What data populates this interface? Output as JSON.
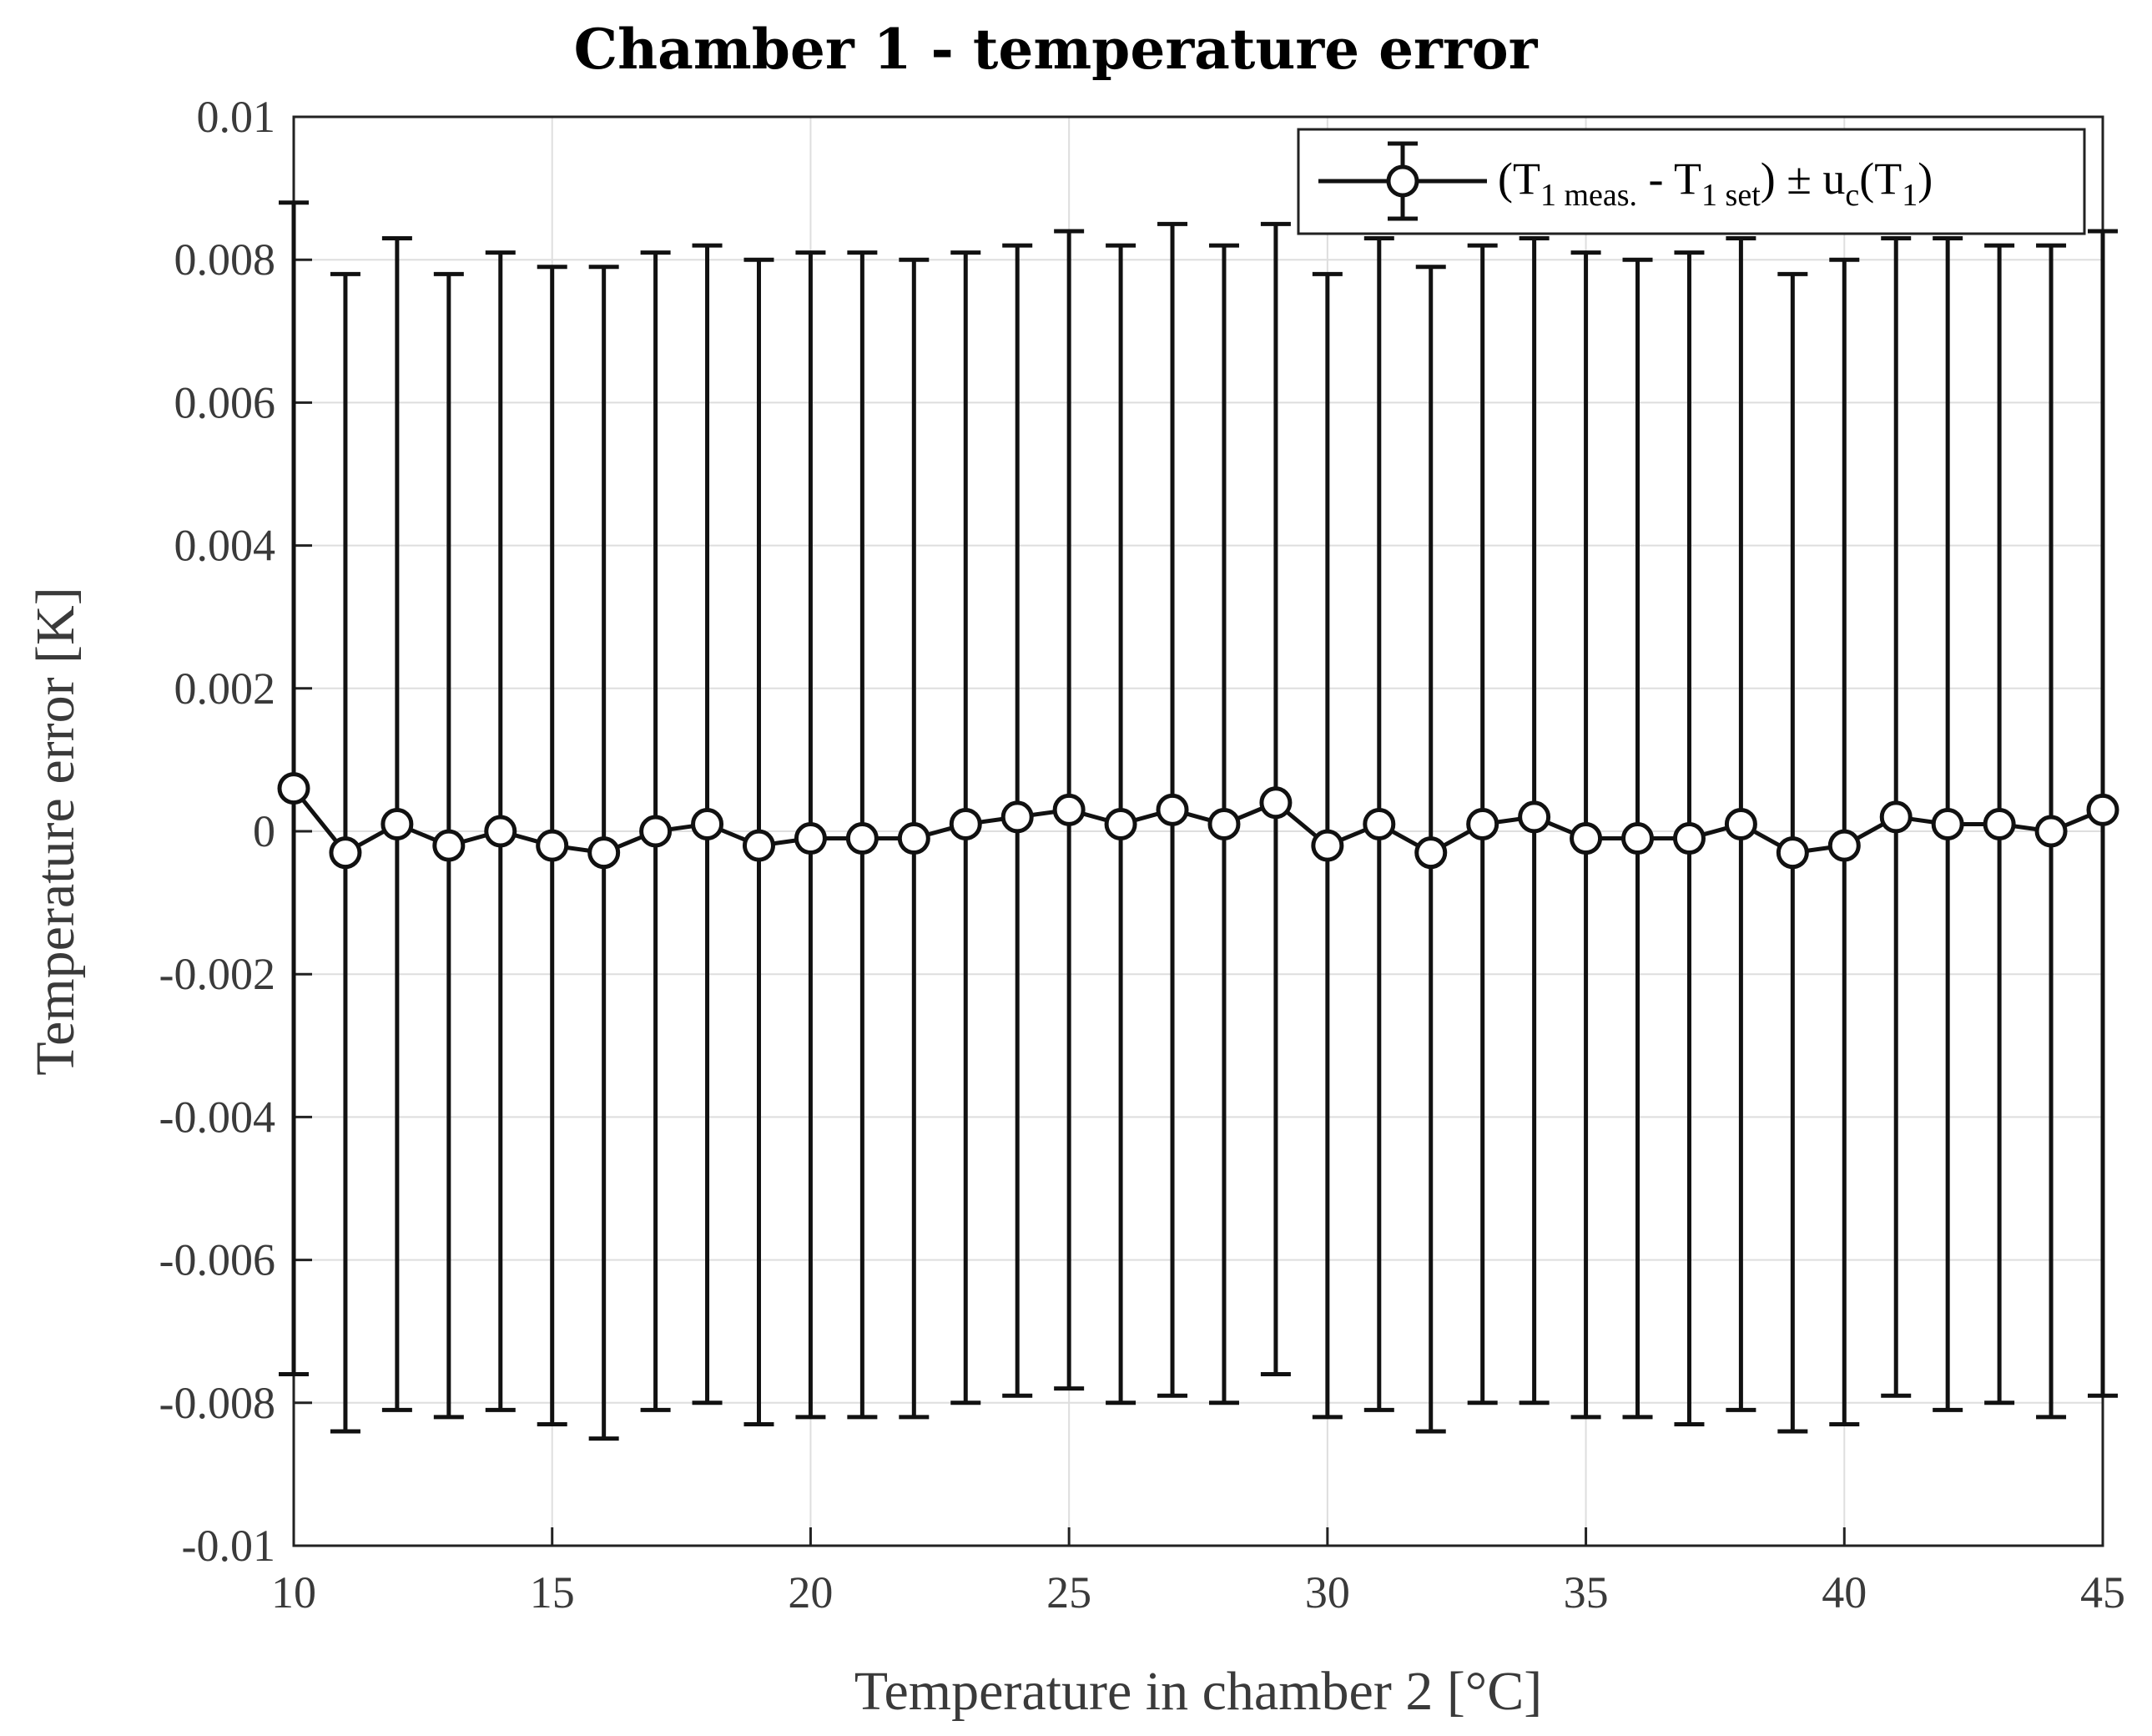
{
  "chart_data": {
    "type": "scatter",
    "title": "Chamber 1 - temperature error",
    "xlabel": "Temperature in chamber 2 [°C]",
    "ylabel": "Temperature error [K]",
    "xlim": [
      10,
      45
    ],
    "ylim": [
      -0.01,
      0.01
    ],
    "xticks": [
      10,
      15,
      20,
      25,
      30,
      35,
      40,
      45
    ],
    "xtick_labels": [
      "10",
      "15",
      "20",
      "25",
      "30",
      "35",
      "40",
      "45"
    ],
    "yticks": [
      0.01,
      0.008,
      0.006,
      0.004,
      0.002,
      0,
      -0.002,
      -0.004,
      -0.006,
      -0.008,
      -0.01
    ],
    "ytick_labels": [
      "0.01",
      "0.008",
      "0.006",
      "0.004",
      "0.002",
      "0",
      "-0.002",
      "-0.004",
      "-0.006",
      "-0.008",
      "-0.01"
    ],
    "grid": true,
    "legend_position": "top-right",
    "series": [
      {
        "name": "(T1 meas. - T1 set) ± uc(T1)",
        "legend": {
          "open": "(T",
          "sub1": "1 meas.",
          "mid": " - T",
          "sub2": "1 set",
          "pm": ") ± u",
          "sub3": "c",
          "paren": "(T",
          "sub4": "1",
          "close": ")"
        },
        "marker": "circle",
        "error_bars": true,
        "x": [
          10,
          11,
          12,
          13,
          14,
          15,
          16,
          17,
          18,
          19,
          20,
          21,
          22,
          23,
          24,
          25,
          26,
          27,
          28,
          29,
          30,
          31,
          32,
          33,
          34,
          35,
          36,
          37,
          38,
          39,
          40,
          41,
          42,
          43,
          44,
          45
        ],
        "y": [
          0.0006,
          -0.0003,
          0.0001,
          -0.0002,
          0.0,
          -0.0002,
          -0.0003,
          0.0,
          0.0001,
          -0.0002,
          -0.0001,
          -0.0001,
          -0.0001,
          0.0001,
          0.0002,
          0.0003,
          0.0001,
          0.0003,
          0.0001,
          0.0004,
          -0.0002,
          0.0001,
          -0.0003,
          0.0001,
          0.0002,
          -0.0001,
          -0.0001,
          -0.0001,
          0.0001,
          -0.0003,
          -0.0002,
          0.0002,
          0.0001,
          0.0001,
          0.0,
          0.0003
        ],
        "upper": [
          0.0088,
          0.0078,
          0.0083,
          0.0078,
          0.0081,
          0.0079,
          0.0079,
          0.0081,
          0.0082,
          0.008,
          0.0081,
          0.0081,
          0.008,
          0.0081,
          0.0082,
          0.0084,
          0.0082,
          0.0085,
          0.0082,
          0.0085,
          0.0078,
          0.0083,
          0.0079,
          0.0082,
          0.0083,
          0.0081,
          0.008,
          0.0081,
          0.0083,
          0.0078,
          0.008,
          0.0083,
          0.0083,
          0.0082,
          0.0082,
          0.0084
        ],
        "lower": [
          -0.0076,
          -0.0084,
          -0.0081,
          -0.0082,
          -0.0081,
          -0.0083,
          -0.0085,
          -0.0081,
          -0.008,
          -0.0083,
          -0.0082,
          -0.0082,
          -0.0082,
          -0.008,
          -0.0079,
          -0.0078,
          -0.008,
          -0.0079,
          -0.008,
          -0.0076,
          -0.0082,
          -0.0081,
          -0.0084,
          -0.008,
          -0.008,
          -0.0082,
          -0.0082,
          -0.0083,
          -0.0081,
          -0.0084,
          -0.0083,
          -0.0079,
          -0.0081,
          -0.008,
          -0.0082,
          -0.0079
        ]
      }
    ]
  }
}
